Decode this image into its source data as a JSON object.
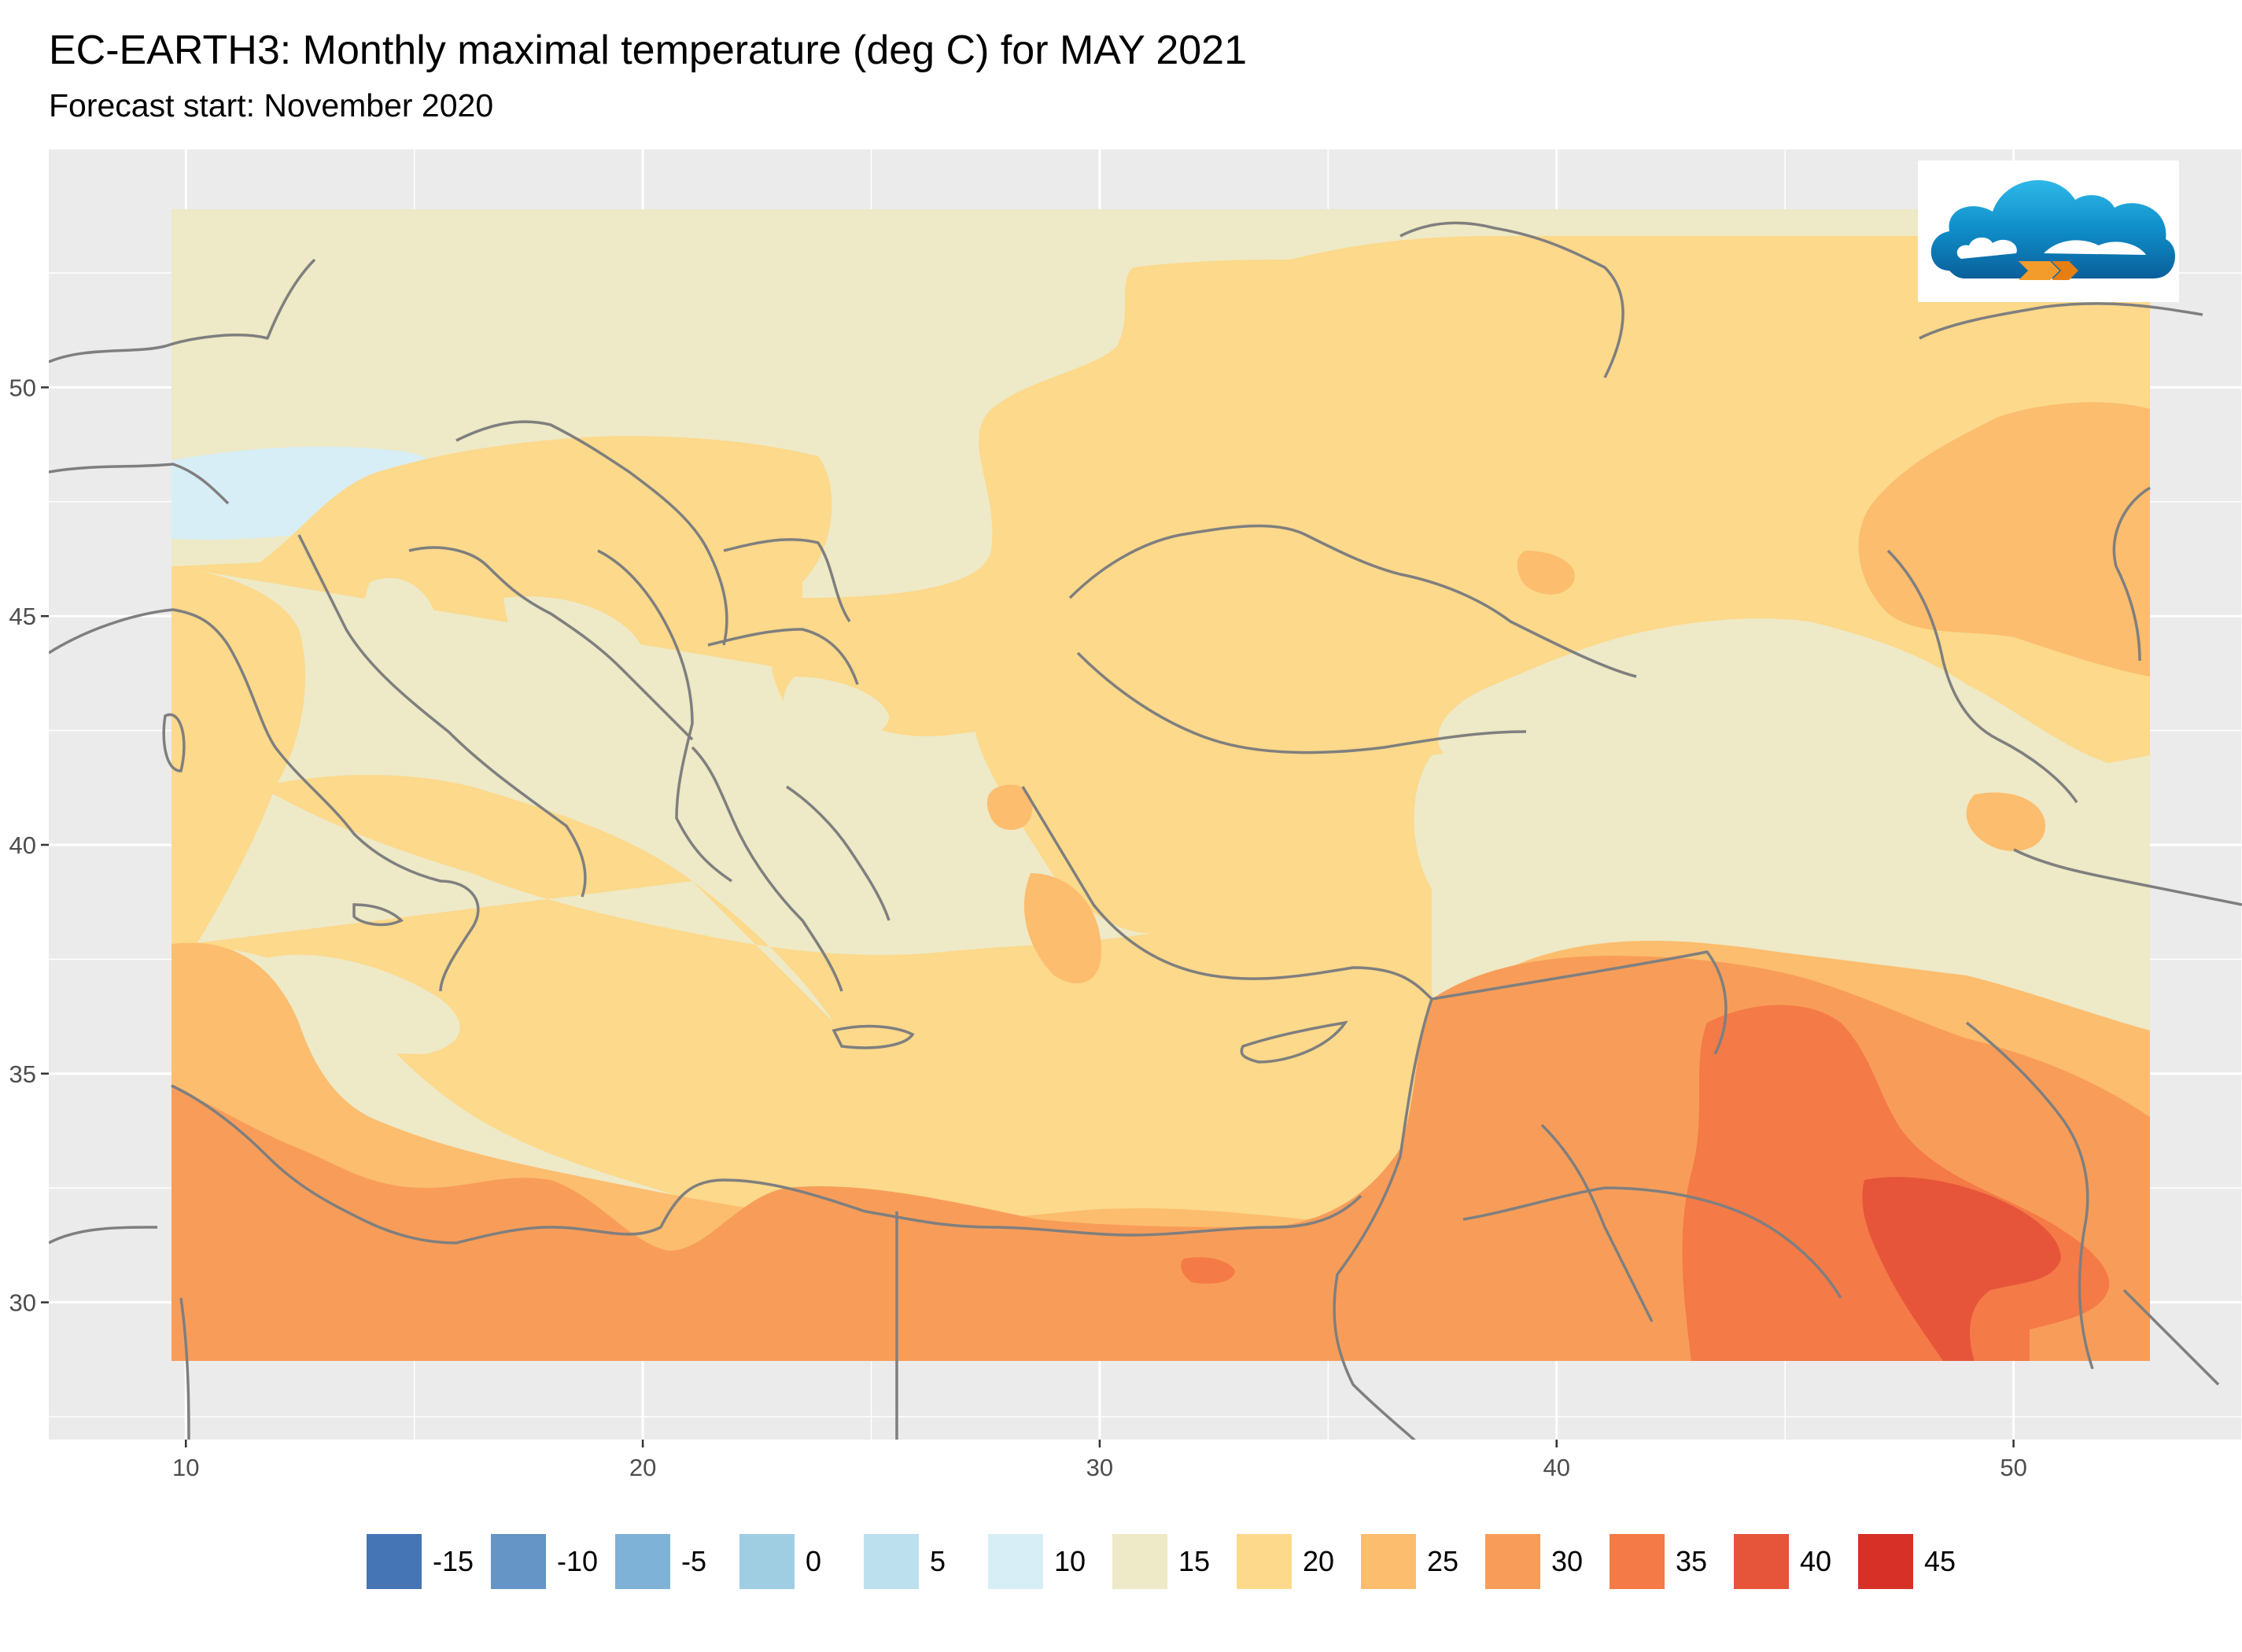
{
  "title": "EC-EARTH3: Monthly maximal temperature (deg C) for MAY 2021",
  "subtitle": "Forecast start: November 2020",
  "map": {
    "background_color": "#ebebeb",
    "gridline_color": "#ffffff",
    "border_color": "#7f7f7f",
    "x_ticks": [
      "10",
      "20",
      "30",
      "40",
      "50"
    ],
    "y_ticks": [
      "30",
      "35",
      "40",
      "45",
      "50"
    ],
    "x_range": [
      7.0,
      55.0
    ],
    "y_range": [
      27.0,
      55.2
    ]
  },
  "legend": [
    {
      "label": "-15",
      "color": "#4575b4"
    },
    {
      "label": "-10",
      "color": "#6495c6"
    },
    {
      "label": "-5",
      "color": "#7eb3d7"
    },
    {
      "label": "0",
      "color": "#9fcee3"
    },
    {
      "label": "5",
      "color": "#bde0ee"
    },
    {
      "label": "10",
      "color": "#d8eef6"
    },
    {
      "label": "15",
      "color": "#eee9c6"
    },
    {
      "label": "20",
      "color": "#fcd98b"
    },
    {
      "label": "25",
      "color": "#fcbd6e"
    },
    {
      "label": "30",
      "color": "#f89d59"
    },
    {
      "label": "35",
      "color": "#f47a47"
    },
    {
      "label": "40",
      "color": "#e6553a"
    },
    {
      "label": "45",
      "color": "#d73027"
    }
  ],
  "logo": {
    "icon": "cloud-logo-icon"
  }
}
